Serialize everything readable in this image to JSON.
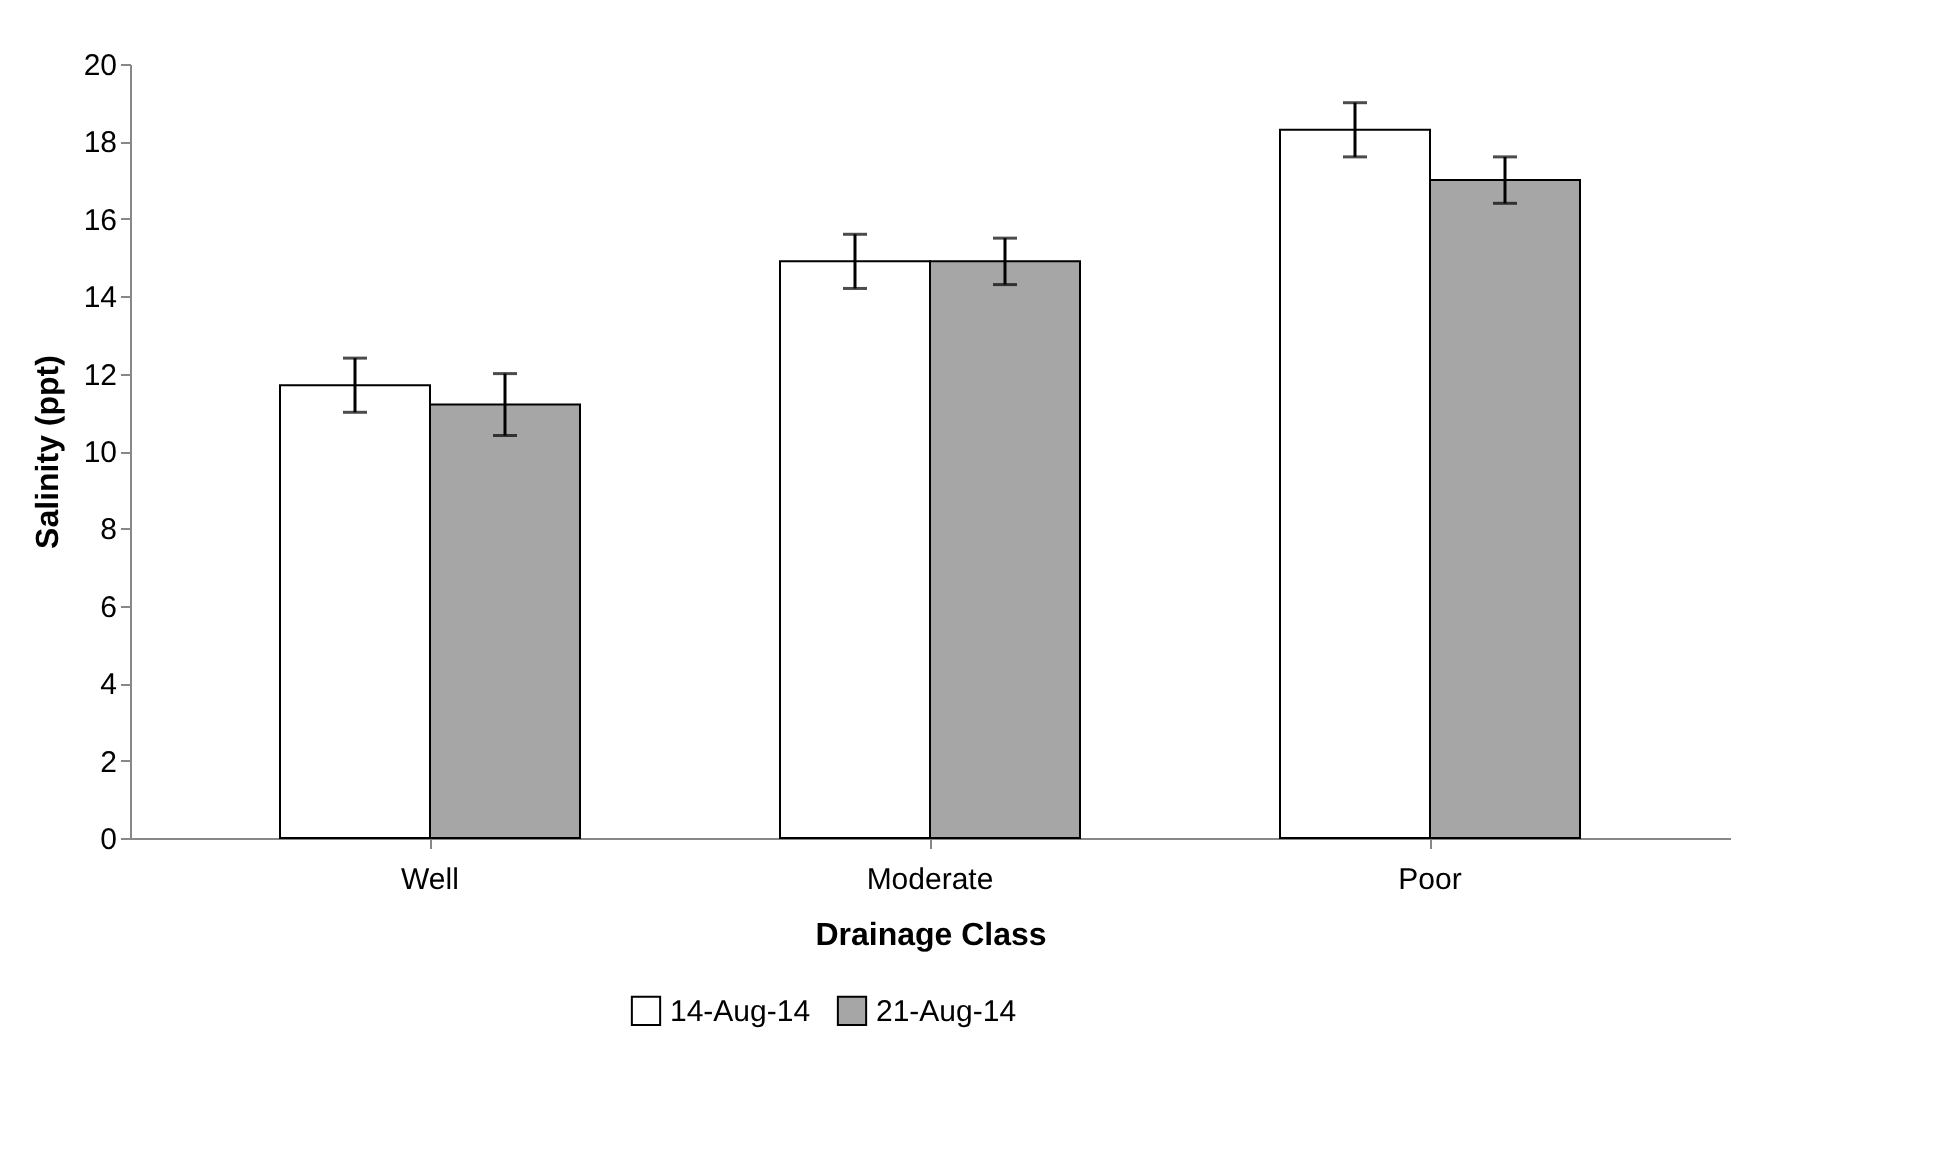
{
  "chart_data": {
    "type": "bar",
    "xlabel": "Drainage Class",
    "ylabel": "Salinity (ppt)",
    "categories": [
      "Well",
      "Moderate",
      "Poor"
    ],
    "series": [
      {
        "name": "14-Aug-14",
        "color": "#ffffff",
        "values": [
          11.7,
          14.9,
          18.3
        ],
        "errors": [
          0.7,
          0.7,
          0.7
        ]
      },
      {
        "name": "21-Aug-14",
        "color": "#a6a6a6",
        "values": [
          11.2,
          14.9,
          17.0
        ],
        "errors": [
          0.8,
          0.6,
          0.6
        ]
      }
    ],
    "ylim": [
      0,
      20
    ],
    "yticks": [
      0,
      2,
      4,
      6,
      8,
      10,
      12,
      14,
      16,
      18,
      20
    ],
    "grid": false,
    "legend": "bottom"
  }
}
